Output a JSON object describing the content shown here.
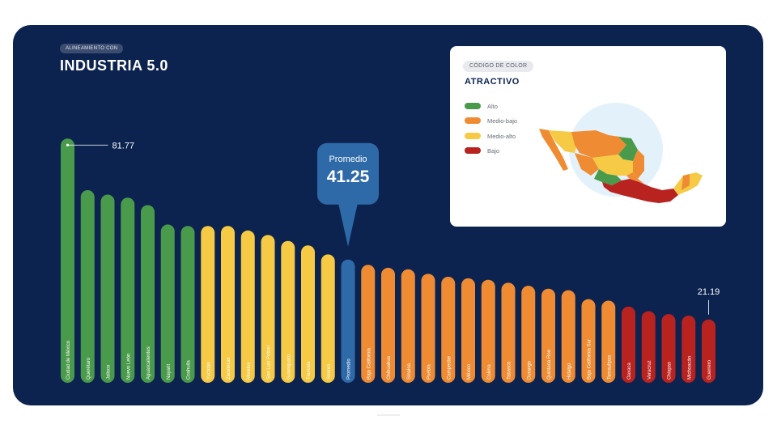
{
  "header": {
    "pill": "ALINEAMIENTO CON",
    "title": "INDUSTRIA 5.0"
  },
  "legend": {
    "pill": "CÓDIGO DE COLOR",
    "title": "ATRACTIVO",
    "items": [
      {
        "label": "Alto",
        "color": "#4a9a4b"
      },
      {
        "label": "Medio-bajo",
        "color": "#ef8c33"
      },
      {
        "label": "Medio-alto",
        "color": "#f6ca44"
      },
      {
        "label": "Bajo",
        "color": "#b8221f"
      }
    ]
  },
  "promedio_callout": {
    "label": "Promedio",
    "value": "41.25"
  },
  "annotations": {
    "max": "81.77",
    "min": "21.19"
  },
  "chart_data": {
    "type": "bar",
    "categories": [
      "Ciudad de México",
      "Querétaro",
      "Jalisco",
      "Nuevo León",
      "Aguascalientes",
      "Nayarit",
      "Coahuila",
      "Yucatán",
      "Zacatecas",
      "Morelos",
      "San Luis Potosí",
      "Guanajuato",
      "Tlaxcala",
      "Sonora",
      "Promedio",
      "Baja California",
      "Chihuahua",
      "Sinaloa",
      "Puebla",
      "Campeche",
      "México",
      "Colima",
      "Tabasco",
      "Durango",
      "Quintana Roo",
      "Hidalgo",
      "Baja California Sur",
      "Tamaulipas",
      "Oaxaca",
      "Veracruz",
      "Chiapas",
      "Michoacán",
      "Guerrero"
    ],
    "values": [
      81.77,
      64.5,
      63,
      62,
      59.5,
      53,
      52.5,
      52.5,
      52.5,
      51,
      49.5,
      47.5,
      46,
      43,
      41.25,
      39.5,
      38.5,
      38,
      36.5,
      35.5,
      35,
      34.5,
      33.5,
      32.5,
      31.5,
      31,
      28,
      27.5,
      25.5,
      24,
      23,
      22.5,
      21.19
    ],
    "levels": [
      "Alto",
      "Alto",
      "Alto",
      "Alto",
      "Alto",
      "Alto",
      "Alto",
      "Medio-alto",
      "Medio-alto",
      "Medio-alto",
      "Medio-alto",
      "Medio-alto",
      "Medio-alto",
      "Medio-alto",
      "Promedio",
      "Medio-bajo",
      "Medio-bajo",
      "Medio-bajo",
      "Medio-bajo",
      "Medio-bajo",
      "Medio-bajo",
      "Medio-bajo",
      "Medio-bajo",
      "Medio-bajo",
      "Medio-bajo",
      "Medio-bajo",
      "Medio-bajo",
      "Medio-bajo",
      "Bajo",
      "Bajo",
      "Bajo",
      "Bajo",
      "Bajo"
    ],
    "colors": {
      "Alto": "#4a9a4b",
      "Medio-alto": "#f6ca44",
      "Medio-bajo": "#ef8c33",
      "Bajo": "#b8221f",
      "Promedio": "#2f6aa8"
    },
    "title": "INDUSTRIA 5.0",
    "xlabel": "",
    "ylabel": "",
    "ylim": [
      0,
      85
    ],
    "grid": false,
    "legend_position": "top-right"
  }
}
